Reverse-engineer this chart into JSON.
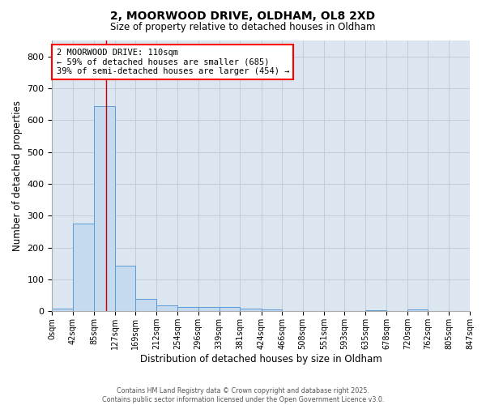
{
  "title": "2, MOORWOOD DRIVE, OLDHAM, OL8 2XD",
  "subtitle": "Size of property relative to detached houses in Oldham",
  "xlabel": "Distribution of detached houses by size in Oldham",
  "ylabel": "Number of detached properties",
  "bin_edges": [
    0,
    42,
    85,
    127,
    169,
    212,
    254,
    296,
    339,
    381,
    424,
    466,
    508,
    551,
    593,
    635,
    678,
    720,
    762,
    805,
    847
  ],
  "bar_heights": [
    8,
    275,
    645,
    143,
    38,
    20,
    13,
    13,
    13,
    8,
    5,
    0,
    0,
    0,
    0,
    3,
    0,
    5,
    0,
    0
  ],
  "bar_color": "#c5d9ef",
  "bar_edge_color": "#5b9bd5",
  "bar_edge_width": 0.7,
  "red_line_x": 110,
  "annotation_line1": "2 MOORWOOD DRIVE: 110sqm",
  "annotation_line2": "← 59% of detached houses are smaller (685)",
  "annotation_line3": "39% of semi-detached houses are larger (454) →",
  "ylim": [
    0,
    850
  ],
  "yticks": [
    0,
    100,
    200,
    300,
    400,
    500,
    600,
    700,
    800
  ],
  "background_color": "#dce6f0",
  "grid_color": "#c0c8d8",
  "footer_line1": "Contains HM Land Registry data © Crown copyright and database right 2025.",
  "footer_line2": "Contains public sector information licensed under the Open Government Licence v3.0."
}
